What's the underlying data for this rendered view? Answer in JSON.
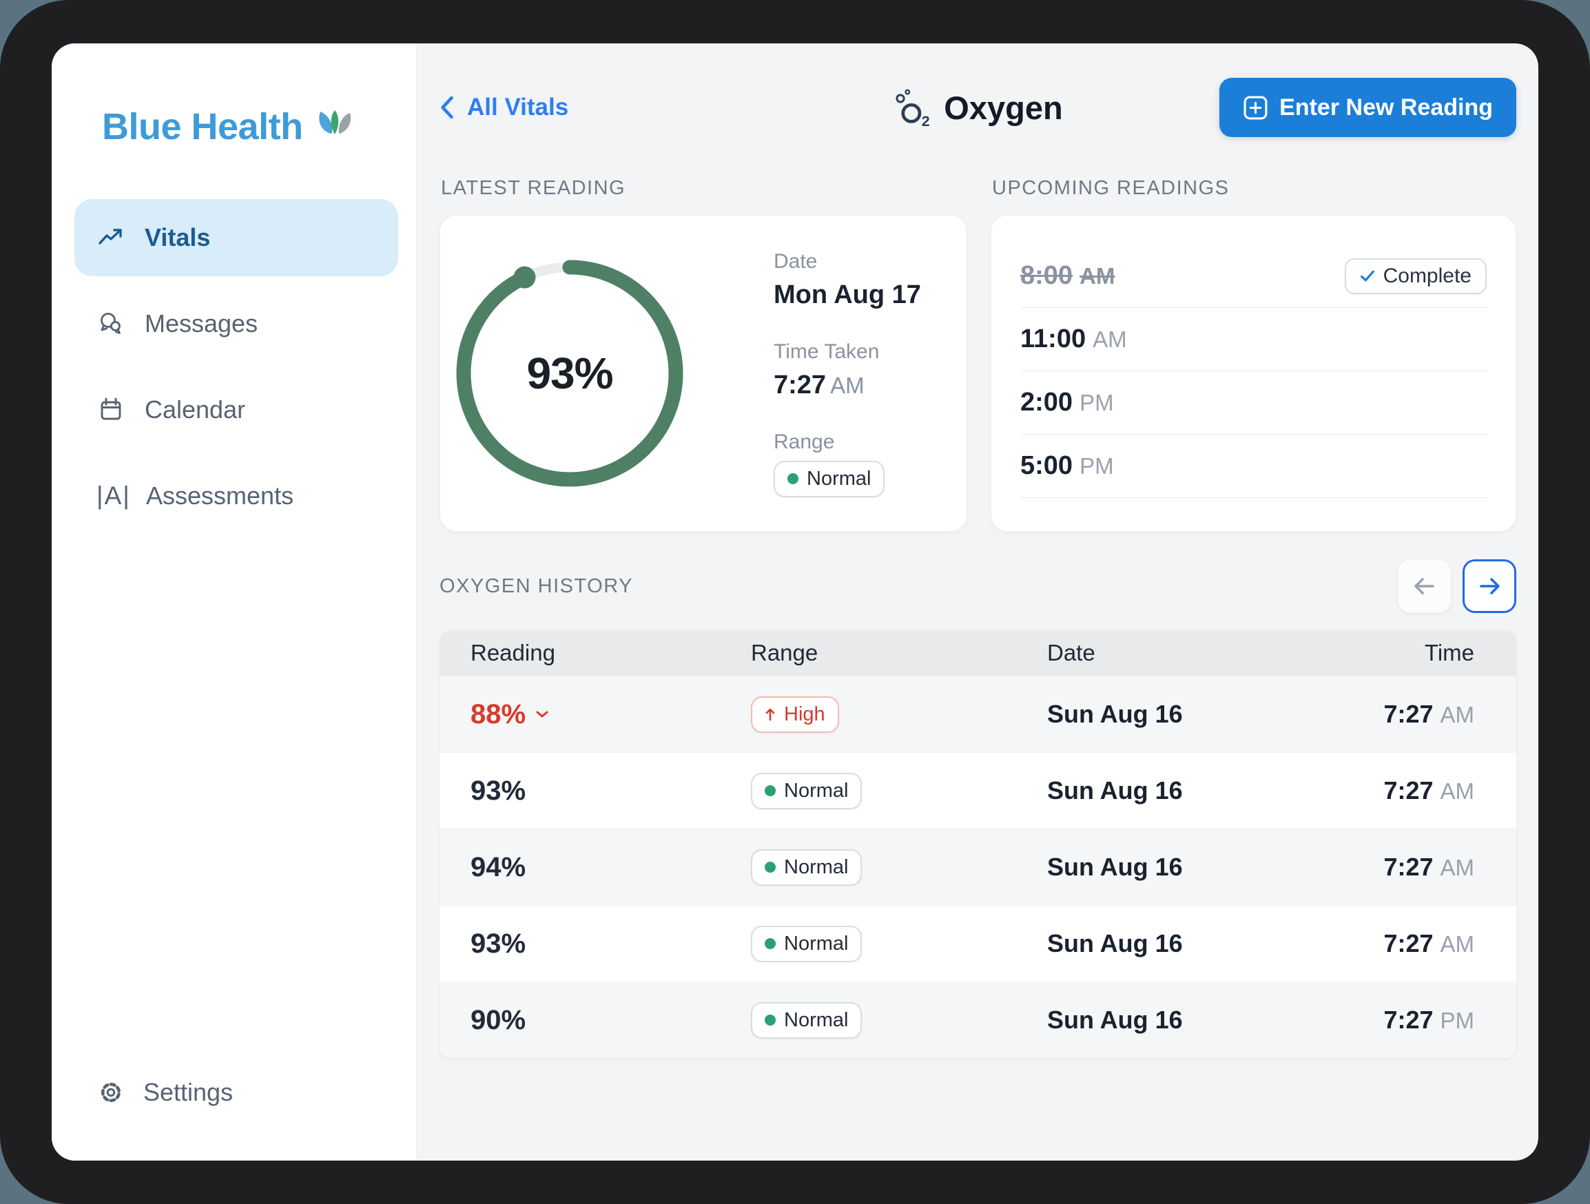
{
  "brand": {
    "name": "Blue Health"
  },
  "sidebar": {
    "items": [
      {
        "label": "Vitals",
        "icon": "trending-up",
        "active": true
      },
      {
        "label": "Messages",
        "icon": "chat-bubbles",
        "active": false
      },
      {
        "label": "Calendar",
        "icon": "calendar",
        "active": false
      },
      {
        "label": "Assessments",
        "icon": "a-between-bars",
        "active": false
      }
    ],
    "footer": {
      "label": "Settings",
      "icon": "gear"
    }
  },
  "header": {
    "back_label": "All Vitals",
    "title": "Oxygen",
    "title_icon": "oxygen-bubbles",
    "action_label": "Enter New Reading",
    "action_icon": "plus-square"
  },
  "latest_reading": {
    "section_label": "LATEST READING",
    "value_percent": 93,
    "value_display": "93%",
    "date_label": "Date",
    "date_value": "Mon Aug 17",
    "time_label": "Time Taken",
    "time_value": "7:27",
    "time_meridiem": "AM",
    "range_label": "Range",
    "range_value": "Normal"
  },
  "upcoming": {
    "section_label": "UPCOMING READINGS",
    "rows": [
      {
        "time": "8:00",
        "meridiem": "AM",
        "status": "complete",
        "badge_label": "Complete"
      },
      {
        "time": "11:00",
        "meridiem": "AM",
        "status": "pending",
        "badge_label": ""
      },
      {
        "time": "2:00",
        "meridiem": "PM",
        "status": "pending",
        "badge_label": ""
      },
      {
        "time": "5:00",
        "meridiem": "PM",
        "status": "pending",
        "badge_label": ""
      }
    ]
  },
  "history": {
    "section_label": "OXYGEN HISTORY",
    "columns": [
      "Reading",
      "Range",
      "Date",
      "Time"
    ],
    "rows": [
      {
        "reading": "88%",
        "range_label": "High",
        "range_status": "high",
        "date": "Sun Aug 16",
        "time": "7:27",
        "meridiem": "AM"
      },
      {
        "reading": "93%",
        "range_label": "Normal",
        "range_status": "normal",
        "date": "Sun Aug 16",
        "time": "7:27",
        "meridiem": "AM"
      },
      {
        "reading": "94%",
        "range_label": "Normal",
        "range_status": "normal",
        "date": "Sun Aug 16",
        "time": "7:27",
        "meridiem": "AM"
      },
      {
        "reading": "93%",
        "range_label": "Normal",
        "range_status": "normal",
        "date": "Sun Aug 16",
        "time": "7:27",
        "meridiem": "AM"
      },
      {
        "reading": "90%",
        "range_label": "Normal",
        "range_status": "normal",
        "date": "Sun Aug 16",
        "time": "7:27",
        "meridiem": "PM"
      }
    ]
  },
  "colors": {
    "brand_blue": "#3e9bd7",
    "primary_button": "#1b7fd9",
    "link_blue": "#2d7ff2",
    "gauge_green": "#4e8065",
    "normal_dot_green": "#2aa171",
    "alert_red": "#d93a2c",
    "pager_accent_blue": "#1f6ce0",
    "frame_black": "#1f1f21",
    "app_background": "#f3f4f6"
  }
}
